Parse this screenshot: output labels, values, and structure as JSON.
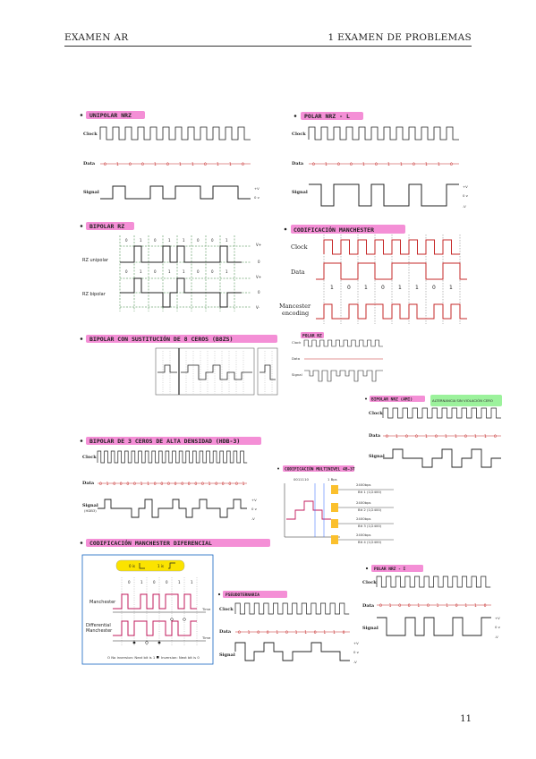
{
  "header": {
    "left": "EXAMEN AR",
    "right": "1   EXAMEN DE PROBLEMAS"
  },
  "page_number": "11",
  "sections": {
    "unipolar_nrz": {
      "title": "UNIPOLAR NRZ",
      "clock": "Clock",
      "data": "Data",
      "signal": "Signal",
      "bits": [
        "0",
        "1",
        "0",
        "0",
        "1",
        "0",
        "1",
        "1",
        "0",
        "1",
        "1",
        "0"
      ],
      "plus_v": "+V",
      "zero_v": "0 v"
    },
    "polar_nrz_l": {
      "title": "POLAR NRZ - L",
      "clock": "Clock",
      "data": "Data",
      "signal": "Signal",
      "bits": [
        "0",
        "1",
        "0",
        "0",
        "1",
        "0",
        "1",
        "1",
        "0",
        "1",
        "1",
        "0"
      ],
      "plus_v": "+V",
      "zero_v": "0 v",
      "minus_v": "-V"
    },
    "bipolar_rz": {
      "title": "BIPOLAR RZ",
      "rz_unipolar": "RZ unipolar",
      "rz_bipolar": "RZ bipolar",
      "bits": [
        "0",
        "1",
        "0",
        "1",
        "1",
        "0",
        "0",
        "1"
      ],
      "v_plus": "V+",
      "zero": "0",
      "v_minus": "V-"
    },
    "manchester": {
      "title": "CODIFICACIÓN MANCHESTER",
      "clock": "Clock",
      "data": "Data",
      "encoding_line1": "Mancester",
      "encoding_line2": "encoding",
      "bits": [
        "1",
        "0",
        "1",
        "0",
        "1",
        "1",
        "0",
        "1"
      ]
    },
    "b8zs": {
      "title": "BIPOLAR CON SUSTITUCIÓN DE 8 CEROS (B8ZS)"
    },
    "polar_rz": {
      "title": "POLAR RZ",
      "clock": "Clock",
      "data": "Data",
      "signal": "Signal"
    },
    "bipolar_nrz_ami": {
      "title": "BIPOLAR NRZ (AMI)",
      "note": "ALTERNANCIA SIN VIOLACIÓN CERO",
      "clock": "Clock",
      "data": "Data",
      "signal": "Signal",
      "bits": [
        "0",
        "1",
        "0",
        "0",
        "1",
        "0",
        "1",
        "1",
        "0",
        "1",
        "1",
        "0"
      ]
    },
    "hdb3": {
      "title": "BIPOLAR DE 3 CEROS DE ALTA DENSIDAD (HDB-3)",
      "clock": "Clock",
      "data": "Data",
      "signal": "Signal",
      "signal_sub": "(HDB3)",
      "bits": [
        "0",
        "1",
        "0",
        "0",
        "0",
        "0",
        "1",
        "1",
        "0",
        "0",
        "0",
        "0",
        "0",
        "0",
        "0",
        "0",
        "1",
        "0",
        "0",
        "0",
        "0",
        "1"
      ],
      "plus_v": "+V",
      "zero_v": "0 v",
      "minus_v": "-V"
    },
    "multilevel": {
      "title": "CODIFICACIÓN MULTINIVEL 4B-3T",
      "bits_label": "0011110",
      "baud_label": "1 Bps",
      "rate": "2400bps",
      "boxes": [
        "Bit 1 (1/2400)",
        "Bit 2 (1/2400)",
        "Bit 3 (1/2400)",
        "Bit 4 (1/2400)"
      ]
    },
    "manchester_diff": {
      "title": "CODIFICACIÓN MANCHESTER DIFERENCIAL",
      "legend_zero": "0 is",
      "legend_one": "1 is",
      "bits": [
        "0",
        "1",
        "0",
        "0",
        "1",
        "1"
      ],
      "manchester": "Manchester",
      "differential_line1": "Differential",
      "differential_line2": "Manchester",
      "time": "Time",
      "footer_no_inv": "O  No inversion: Next bit is 1",
      "footer_inv": "Inversion: Next bit is 0"
    },
    "pseudoternary": {
      "title": "PSEUDOTERNARIA",
      "clock": "Clock",
      "data": "Data",
      "signal": "Signal",
      "bits": [
        "0",
        "1",
        "0",
        "0",
        "1",
        "0",
        "1",
        "1",
        "0",
        "1",
        "1",
        "0"
      ],
      "plus_v": "+V",
      "zero_v": "0 v",
      "minus_v": "-V"
    },
    "polar_nrz_i": {
      "title": "POLAR NRZ - I",
      "clock": "Clock",
      "data": "Data",
      "signal": "Signal",
      "bits": [
        "0",
        "1",
        "0",
        "0",
        "1",
        "0",
        "1",
        "1",
        "0",
        "1",
        "1",
        "0"
      ],
      "plus_v": "+V",
      "zero_v": "0 v",
      "minus_v": "-V"
    }
  }
}
